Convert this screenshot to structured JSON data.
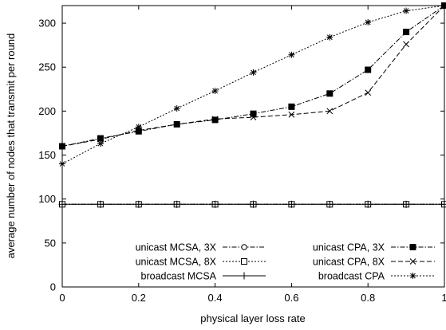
{
  "chart_data": {
    "type": "line",
    "xlabel": "physical layer loss rate",
    "ylabel": "average number of nodes that transmit per round",
    "xlim": [
      0,
      1
    ],
    "ylim": [
      0,
      320
    ],
    "x_ticks": [
      "0",
      "0.2",
      "0.4",
      "0.6",
      "0.8",
      "1"
    ],
    "y_ticks": [
      "0",
      "50",
      "100",
      "150",
      "200",
      "250",
      "300"
    ],
    "grid": false,
    "legend_position": "bottom",
    "x": [
      0,
      0.1,
      0.2,
      0.3,
      0.4,
      0.5,
      0.6,
      0.7,
      0.8,
      0.9,
      1.0
    ],
    "series": [
      {
        "name": "unicast MCSA, 3X",
        "marker": "open-circle",
        "dash": "dash-dot",
        "values": [
          94,
          94,
          94,
          94,
          94,
          94,
          94,
          94,
          94,
          94,
          94
        ]
      },
      {
        "name": "unicast MCSA, 8X",
        "marker": "open-square",
        "dash": "dotted",
        "values": [
          94,
          94,
          94,
          94,
          94,
          94,
          94,
          94,
          94,
          94,
          94
        ]
      },
      {
        "name": "broadcast MCSA",
        "marker": "plus",
        "dash": "solid",
        "values": [
          94,
          94,
          94,
          94,
          94,
          94,
          94,
          94,
          94,
          94,
          94
        ]
      },
      {
        "name": "unicast CPA, 3X",
        "marker": "filled-square",
        "dash": "dash-dot",
        "values": [
          160,
          169,
          177,
          185,
          190,
          197,
          205,
          220,
          247,
          290,
          320
        ]
      },
      {
        "name": "unicast CPA, 8X",
        "marker": "cross",
        "dash": "dashed",
        "values": [
          160,
          168,
          178,
          185,
          191,
          193,
          196,
          200,
          221,
          276,
          320
        ]
      },
      {
        "name": "broadcast CPA",
        "marker": "star",
        "dash": "dotted",
        "values": [
          140,
          163,
          182,
          203,
          223,
          244,
          264,
          284,
          301,
          314,
          320
        ]
      }
    ]
  }
}
